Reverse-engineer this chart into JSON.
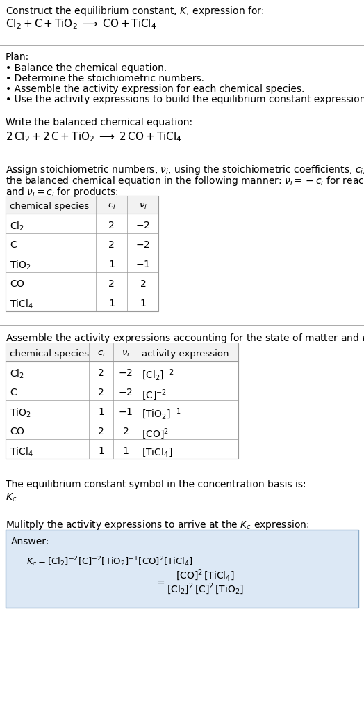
{
  "title_line1": "Construct the equilibrium constant, $K$, expression for:",
  "title_line2_plain": "Cl",
  "balanced_header": "Write the balanced chemical equation:",
  "plan_header": "Plan:",
  "plan_bullets": [
    "• Balance the chemical equation.",
    "• Determine the stoichiometric numbers.",
    "• Assemble the activity expression for each chemical species.",
    "• Use the activity expressions to build the equilibrium constant expression."
  ],
  "assign_header_parts": [
    "Assign stoichiometric numbers, ",
    ", using the stoichiometric coefficients, ",
    ", from the balanced chemical equation in the following manner: ",
    " for reactants and ",
    " for products:"
  ],
  "table1_col_headers": [
    "chemical species",
    "c_i",
    "v_i"
  ],
  "table1_rows": [
    [
      "Cl_2",
      "2",
      "-2"
    ],
    [
      "C",
      "2",
      "-2"
    ],
    [
      "TiO_2",
      "1",
      "-1"
    ],
    [
      "CO",
      "2",
      "2"
    ],
    [
      "TiCl_4",
      "1",
      "1"
    ]
  ],
  "table2_col_headers": [
    "chemical species",
    "c_i",
    "v_i",
    "activity expression"
  ],
  "table2_rows": [
    [
      "Cl_2",
      "2",
      "-2",
      "[Cl_2]^{-2}"
    ],
    [
      "C",
      "2",
      "-2",
      "[C]^{-2}"
    ],
    [
      "TiO_2",
      "1",
      "-1",
      "[TiO_2]^{-1}"
    ],
    [
      "CO",
      "2",
      "2",
      "[CO]^{2}"
    ],
    [
      "TiCl_4",
      "1",
      "1",
      "[TiCl_4]"
    ]
  ],
  "kc_header": "The equilibrium constant symbol in the concentration basis is:",
  "multiply_header": "Mulitply the activity expressions to arrive at the $K_c$ expression:",
  "bg_color": "#ffffff",
  "answer_bg": "#dce8f5",
  "answer_border": "#8aaac8",
  "line_color": "#aaaaaa",
  "table_line_color": "#999999",
  "font_size": 10,
  "table_font_size": 10
}
